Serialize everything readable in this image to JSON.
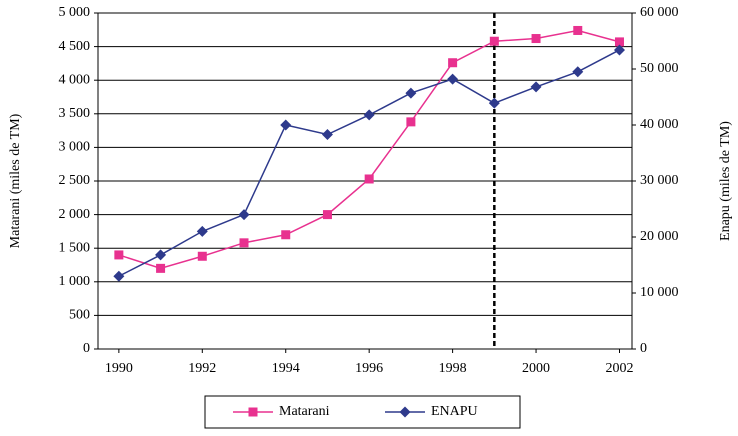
{
  "chart_data": {
    "type": "line",
    "x": [
      1990,
      1991,
      1992,
      1993,
      1994,
      1995,
      1996,
      1997,
      1998,
      1999,
      2000,
      2001,
      2002
    ],
    "series": [
      {
        "name": "Matarani",
        "color": "#e8318f",
        "marker": "square",
        "values": [
          1400,
          1200,
          1380,
          1580,
          1700,
          2000,
          2530,
          3380,
          4260,
          4580,
          4620,
          4740,
          4570
        ]
      },
      {
        "name": "ENAPU",
        "color": "#2e3a8c",
        "marker": "diamond",
        "axis": "y2",
        "values": [
          13000,
          16800,
          21000,
          24000,
          40000,
          38300,
          41800,
          45700,
          48200,
          43900,
          46800,
          49500,
          53400
        ]
      }
    ],
    "y_label": "Matarani (miles de TM)",
    "y2_label": "Enapu (miles de TM)",
    "xlim": [
      1989.5,
      2002.3
    ],
    "xticks": [
      1990,
      1992,
      1994,
      1996,
      1998,
      2000,
      2002
    ],
    "ylim": [
      0,
      5000
    ],
    "yticks": [
      0,
      500,
      {
        "value": 1000,
        "label": "1 000"
      },
      {
        "value": 1500,
        "label": "1 500"
      },
      {
        "value": 2000,
        "label": "2 000"
      },
      {
        "value": 2500,
        "label": "2 500"
      },
      {
        "value": 3000,
        "label": "3 000"
      },
      {
        "value": 3500,
        "label": "3 500"
      },
      {
        "value": 4000,
        "label": "4 000"
      },
      {
        "value": 4500,
        "label": "4 500"
      },
      {
        "value": 5000,
        "label": "5 000"
      }
    ],
    "y2lim": [
      0,
      60000
    ],
    "y2ticks": [
      0,
      {
        "value": 10000,
        "label": "10 000"
      },
      {
        "value": 20000,
        "label": "20 000"
      },
      {
        "value": 30000,
        "label": "30 000"
      },
      {
        "value": 40000,
        "label": "40 000"
      },
      {
        "value": 50000,
        "label": "50 000"
      },
      {
        "value": 60000,
        "label": "60 000"
      }
    ],
    "vline_x": 1999,
    "grid": true,
    "legend": "bottom"
  }
}
